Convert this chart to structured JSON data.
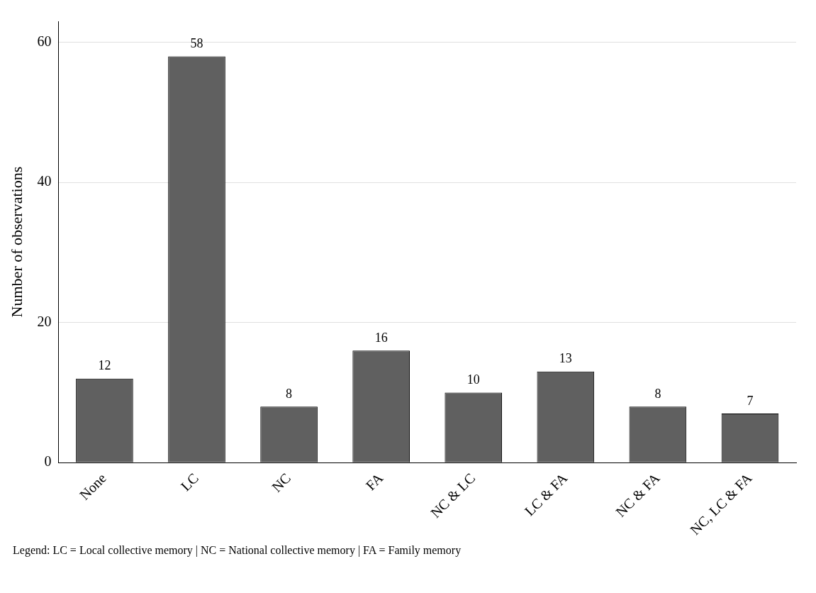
{
  "chart_data": {
    "type": "bar",
    "ylabel": "Number of observations",
    "categories": [
      "None",
      "LC",
      "NC",
      "FA",
      "NC & LC",
      "LC & FA",
      "NC & FA",
      "NC, LC & FA"
    ],
    "values": [
      12,
      58,
      8,
      16,
      10,
      13,
      8,
      7
    ],
    "color": "#606060",
    "ylim": [
      0,
      63
    ],
    "yticks": [
      0,
      20,
      40,
      60
    ],
    "grid": "y",
    "data_labels": true,
    "legend": false,
    "annotations": [
      "Legend: LC = Local collective memory | NC = National collective memory | FA = Family memory"
    ]
  }
}
